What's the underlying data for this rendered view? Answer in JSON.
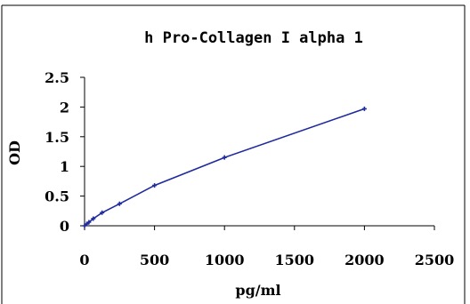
{
  "chart_data": {
    "type": "line",
    "title": "h Pro-Collagen I alpha 1",
    "xlabel": "pg/ml",
    "ylabel": "OD",
    "xlim": [
      0,
      2500
    ],
    "ylim": [
      0,
      2.5
    ],
    "x_ticks": [
      "0",
      "500",
      "1000",
      "1500",
      "2000",
      "2500"
    ],
    "y_ticks": [
      "0",
      "0.5",
      "1",
      "1.5",
      "2",
      "2.5"
    ],
    "grid": false,
    "legend": "none",
    "series": [
      {
        "color": "#1f2a9e",
        "x": [
          0,
          15.6,
          31.2,
          62.5,
          125,
          250,
          500,
          1000,
          2000
        ],
        "y": [
          0.0,
          0.03,
          0.06,
          0.12,
          0.22,
          0.37,
          0.68,
          1.15,
          1.97
        ]
      }
    ]
  }
}
